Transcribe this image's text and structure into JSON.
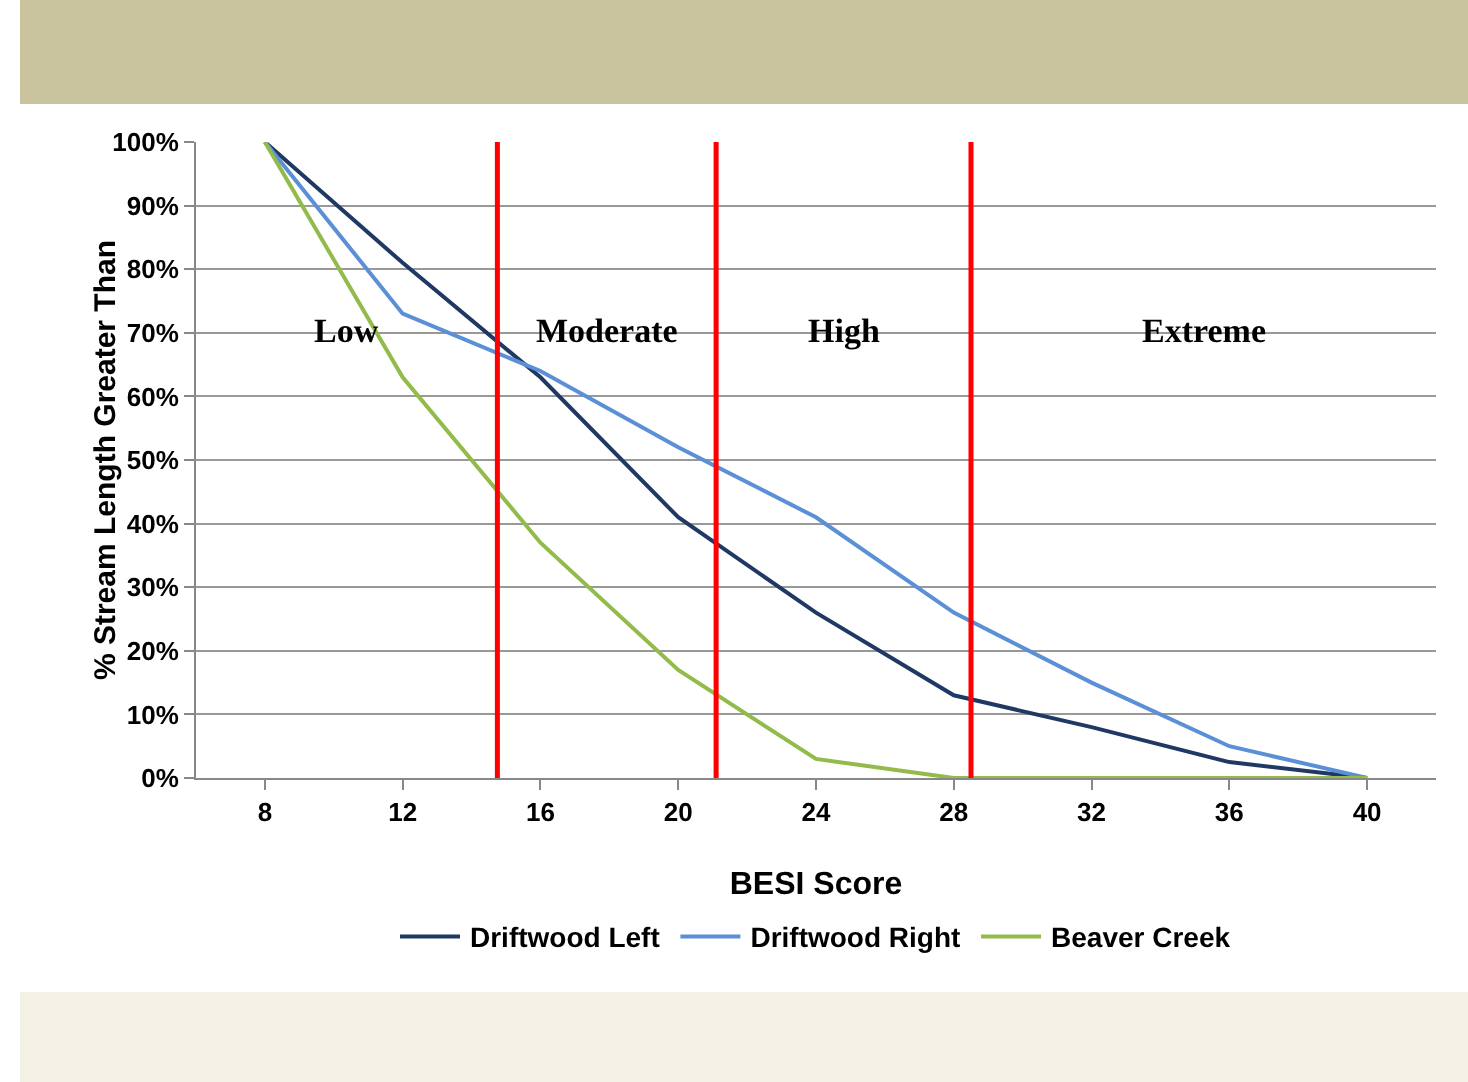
{
  "chart_data": {
    "type": "line",
    "xlabel": "BESI Score",
    "ylabel": "% Stream Length Greater Than",
    "x": [
      8,
      12,
      16,
      20,
      24,
      28,
      32,
      36,
      40
    ],
    "series": [
      {
        "name": "Driftwood Left",
        "color": "#1f3864",
        "values": [
          100,
          81,
          63,
          41,
          26,
          13,
          8,
          2.5,
          0
        ]
      },
      {
        "name": "Driftwood Right",
        "color": "#5b8fd6",
        "values": [
          100,
          73,
          64,
          52,
          41,
          26,
          15,
          5,
          0
        ]
      },
      {
        "name": "Beaver Creek",
        "color": "#92bb4c",
        "values": [
          100,
          63,
          37,
          17,
          3,
          0,
          0,
          0,
          0
        ]
      }
    ],
    "xlim": [
      6,
      42
    ],
    "xticks": [
      8,
      12,
      16,
      20,
      24,
      28,
      32,
      36,
      40
    ],
    "ylim": [
      0,
      100
    ],
    "yticks": [
      {
        "value": 0,
        "label": "0%"
      },
      {
        "value": 10,
        "label": "10%"
      },
      {
        "value": 20,
        "label": "20%"
      },
      {
        "value": 30,
        "label": "30%"
      },
      {
        "value": 40,
        "label": "40%"
      },
      {
        "value": 50,
        "label": "50%"
      },
      {
        "value": 60,
        "label": "60%"
      },
      {
        "value": 70,
        "label": "70%"
      },
      {
        "value": 80,
        "label": "80%"
      },
      {
        "value": 90,
        "label": "90%"
      },
      {
        "value": 100,
        "label": "100%"
      }
    ],
    "ref_lines": [
      {
        "axis": "x",
        "value": 14.75,
        "color": "#ff0000"
      },
      {
        "axis": "x",
        "value": 21.1,
        "color": "#ff0000"
      },
      {
        "axis": "x",
        "value": 28.5,
        "color": "#ff0000"
      }
    ],
    "annotations": [
      "Low",
      "Moderate",
      "High",
      "Extreme"
    ],
    "grid": "y",
    "legend": "bottom",
    "marker": "none",
    "line_style": "solid"
  }
}
